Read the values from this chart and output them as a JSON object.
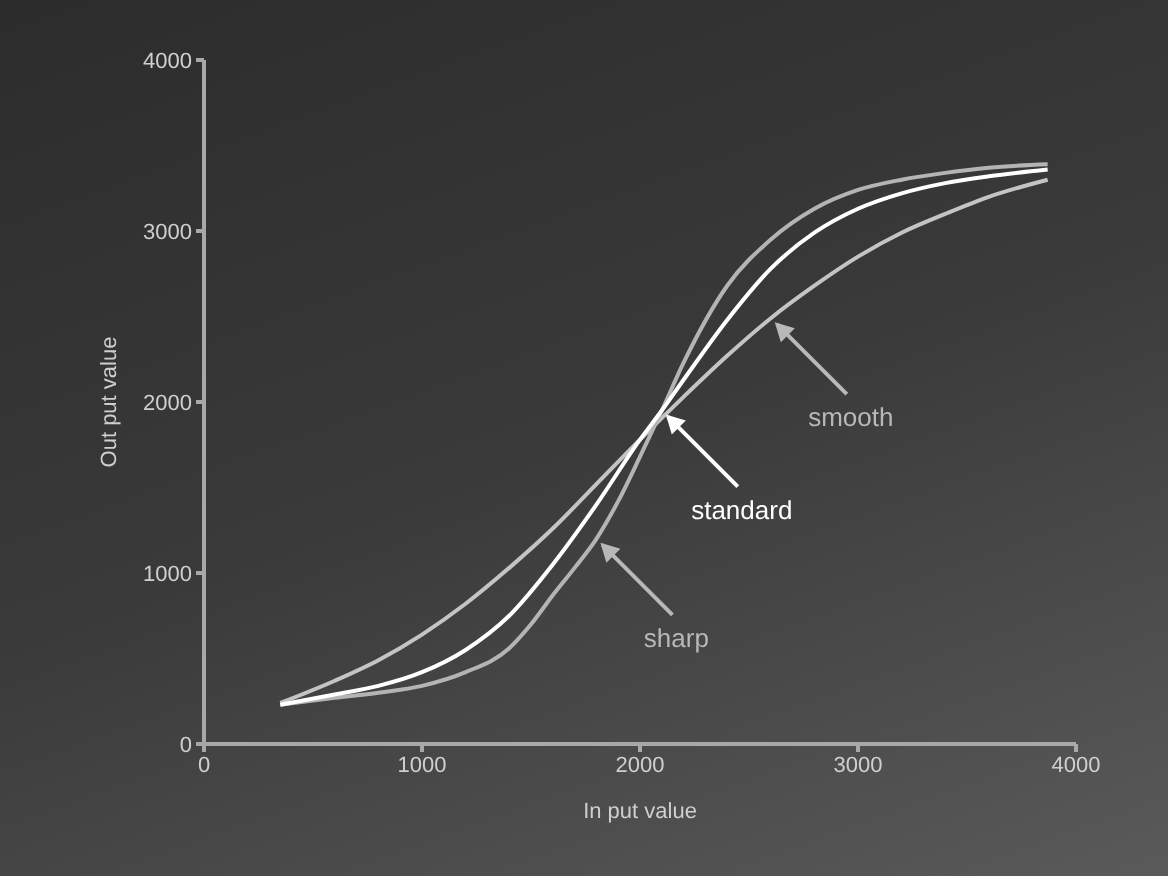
{
  "chart_data": {
    "type": "line",
    "xlabel": "In put value",
    "ylabel": "Out put value",
    "xlim": [
      0,
      4000
    ],
    "xticks": [
      0,
      1000,
      2000,
      3000,
      4000
    ],
    "ylim": [
      0,
      4000
    ],
    "yticks": [
      0,
      1000,
      2000,
      3000,
      4000
    ],
    "grid": false,
    "legend": false,
    "marker": "none",
    "line_style": "solid",
    "series": [
      {
        "color": "#c4c4c4",
        "x": [
          350,
          600,
          800,
          1000,
          1200,
          1400,
          1600,
          1800,
          2000,
          2200,
          2400,
          2600,
          2800,
          3000,
          3200,
          3400,
          3600,
          3870
        ],
        "values": [
          240,
          370,
          490,
          640,
          820,
          1030,
          1260,
          1520,
          1780,
          2030,
          2270,
          2490,
          2680,
          2850,
          2990,
          3100,
          3200,
          3300
        ]
      },
      {
        "color": "#b4b4b4",
        "x": [
          350,
          600,
          800,
          1000,
          1200,
          1400,
          1500,
          1600,
          1700,
          1800,
          1900,
          2000,
          2100,
          2200,
          2400,
          2600,
          2800,
          3000,
          3200,
          3400,
          3600,
          3870
        ],
        "values": [
          230,
          270,
          300,
          340,
          420,
          560,
          700,
          870,
          1030,
          1200,
          1420,
          1680,
          1950,
          2230,
          2680,
          2950,
          3130,
          3240,
          3300,
          3340,
          3370,
          3390
        ]
      },
      {
        "color": "#ffffff",
        "x": [
          350,
          600,
          800,
          1000,
          1200,
          1400,
          1600,
          1800,
          2000,
          2100,
          2200,
          2400,
          2600,
          2800,
          3000,
          3200,
          3400,
          3600,
          3870
        ],
        "values": [
          230,
          290,
          340,
          420,
          550,
          750,
          1050,
          1400,
          1780,
          1950,
          2130,
          2480,
          2780,
          2990,
          3130,
          3220,
          3280,
          3320,
          3360
        ]
      }
    ],
    "annotations": [
      {
        "text": "smooth",
        "x": 2600,
        "y": 2490
      },
      {
        "text": "standard",
        "x": 2100,
        "y": 1950
      },
      {
        "text": "sharp",
        "x": 1800,
        "y": 1200
      }
    ]
  }
}
